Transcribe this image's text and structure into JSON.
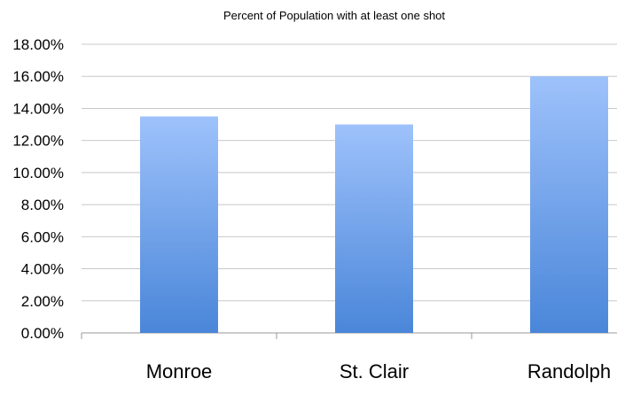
{
  "chart_data": {
    "type": "bar",
    "title": "Percent of Population with at least one shot",
    "categories": [
      "Monroe",
      "St. Clair",
      "Randolph"
    ],
    "values": [
      13.5,
      13.0,
      16.0
    ],
    "ylim": [
      0,
      18
    ],
    "yticks": [
      "0.00%",
      "2.00%",
      "4.00%",
      "6.00%",
      "8.00%",
      "10.00%",
      "12.00%",
      "14.00%",
      "16.00%",
      "18.00%"
    ],
    "xlabel": "",
    "ylabel": "",
    "grid": true,
    "legend": "none",
    "bar_color_top": "#9ec2fb",
    "bar_color_bottom": "#4a86d9"
  }
}
